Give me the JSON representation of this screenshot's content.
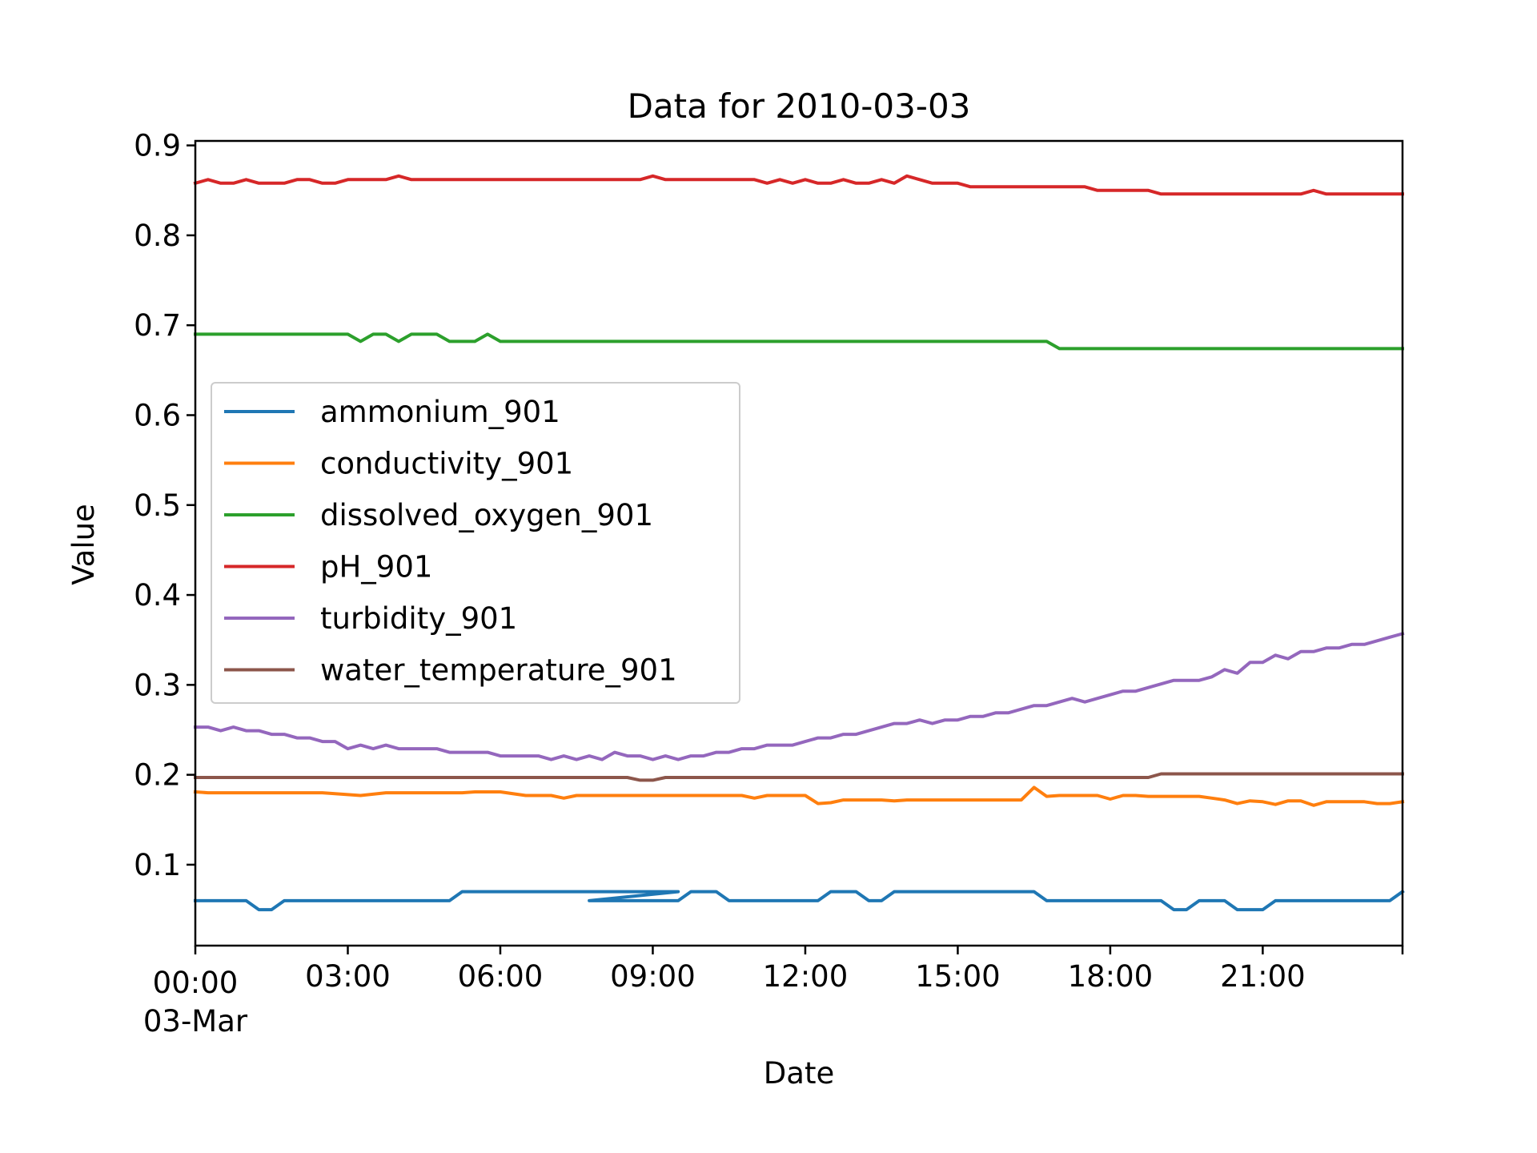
{
  "chart_data": {
    "type": "line",
    "title": "Data for 2010-03-03",
    "xlabel": "Date",
    "ylabel": "Value",
    "x_ticks": [
      "00:00",
      "03:00",
      "06:00",
      "09:00",
      "12:00",
      "15:00",
      "18:00",
      "21:00"
    ],
    "x_tick_date": "03-Mar",
    "y_ticks": [
      "0.1",
      "0.2",
      "0.3",
      "0.4",
      "0.5",
      "0.6",
      "0.7",
      "0.8",
      "0.9"
    ],
    "xlim": [
      "2010-03-03 00:00",
      "2010-03-03 23:45"
    ],
    "ylim": [
      0.01,
      0.905
    ],
    "grid": false,
    "legend_position": "center-left",
    "series": [
      {
        "name": "ammonium_901",
        "color": "#1f77b4",
        "points": [
          [
            "00:00",
            0.06
          ],
          [
            "01:00",
            0.06
          ],
          [
            "01:15",
            0.05
          ],
          [
            "01:30",
            0.05
          ],
          [
            "01:45",
            0.06
          ],
          [
            "05:00",
            0.06
          ],
          [
            "05:15",
            0.07
          ],
          [
            "09:30",
            0.07
          ],
          [
            "07:45",
            0.06
          ],
          [
            "09:30",
            0.06
          ],
          [
            "09:45",
            0.07
          ],
          [
            "10:15",
            0.07
          ],
          [
            "10:30",
            0.06
          ],
          [
            "12:15",
            0.06
          ],
          [
            "12:30",
            0.07
          ],
          [
            "13:00",
            0.07
          ],
          [
            "13:15",
            0.06
          ],
          [
            "13:30",
            0.06
          ],
          [
            "13:45",
            0.07
          ],
          [
            "16:30",
            0.07
          ],
          [
            "16:45",
            0.06
          ],
          [
            "19:00",
            0.06
          ],
          [
            "19:15",
            0.05
          ],
          [
            "19:30",
            0.05
          ],
          [
            "19:45",
            0.06
          ],
          [
            "20:15",
            0.06
          ],
          [
            "20:30",
            0.05
          ],
          [
            "21:00",
            0.05
          ],
          [
            "21:15",
            0.06
          ],
          [
            "23:30",
            0.06
          ],
          [
            "23:45",
            0.07
          ]
        ]
      },
      {
        "name": "conductivity_901",
        "color": "#ff7f0e",
        "points": [
          [
            "00:00",
            0.181
          ],
          [
            "00:15",
            0.18
          ],
          [
            "02:30",
            0.18
          ],
          [
            "03:00",
            0.178
          ],
          [
            "03:15",
            0.177
          ],
          [
            "03:45",
            0.18
          ],
          [
            "05:15",
            0.18
          ],
          [
            "05:30",
            0.181
          ],
          [
            "06:00",
            0.181
          ],
          [
            "06:30",
            0.177
          ],
          [
            "07:00",
            0.177
          ],
          [
            "07:15",
            0.174
          ],
          [
            "07:30",
            0.177
          ],
          [
            "10:45",
            0.177
          ],
          [
            "11:00",
            0.174
          ],
          [
            "11:15",
            0.177
          ],
          [
            "12:00",
            0.177
          ],
          [
            "12:15",
            0.168
          ],
          [
            "12:30",
            0.169
          ],
          [
            "12:45",
            0.172
          ],
          [
            "13:30",
            0.172
          ],
          [
            "13:45",
            0.171
          ],
          [
            "14:00",
            0.172
          ],
          [
            "16:15",
            0.172
          ],
          [
            "16:30",
            0.186
          ],
          [
            "16:45",
            0.176
          ],
          [
            "17:00",
            0.177
          ],
          [
            "17:45",
            0.177
          ],
          [
            "18:00",
            0.173
          ],
          [
            "18:15",
            0.177
          ],
          [
            "18:30",
            0.177
          ],
          [
            "18:45",
            0.176
          ],
          [
            "19:45",
            0.176
          ],
          [
            "20:00",
            0.174
          ],
          [
            "20:15",
            0.172
          ],
          [
            "20:30",
            0.168
          ],
          [
            "20:45",
            0.171
          ],
          [
            "21:00",
            0.17
          ],
          [
            "21:15",
            0.167
          ],
          [
            "21:30",
            0.171
          ],
          [
            "21:45",
            0.171
          ],
          [
            "22:00",
            0.166
          ],
          [
            "22:15",
            0.17
          ],
          [
            "23:00",
            0.17
          ],
          [
            "23:15",
            0.168
          ],
          [
            "23:30",
            0.168
          ],
          [
            "23:45",
            0.17
          ]
        ]
      },
      {
        "name": "dissolved_oxygen_901",
        "color": "#2ca02c",
        "points": [
          [
            "00:00",
            0.69
          ],
          [
            "03:00",
            0.69
          ],
          [
            "03:15",
            0.682
          ],
          [
            "03:30",
            0.69
          ],
          [
            "03:45",
            0.69
          ],
          [
            "04:00",
            0.682
          ],
          [
            "04:15",
            0.69
          ],
          [
            "04:45",
            0.69
          ],
          [
            "05:00",
            0.682
          ],
          [
            "05:30",
            0.682
          ],
          [
            "05:45",
            0.69
          ],
          [
            "06:00",
            0.682
          ],
          [
            "16:45",
            0.682
          ],
          [
            "17:00",
            0.674
          ],
          [
            "23:45",
            0.674
          ]
        ]
      },
      {
        "name": "pH_901",
        "color": "#d62728",
        "points": [
          [
            "00:00",
            0.858
          ],
          [
            "00:15",
            0.862
          ],
          [
            "00:30",
            0.858
          ],
          [
            "00:45",
            0.858
          ],
          [
            "01:00",
            0.862
          ],
          [
            "01:15",
            0.858
          ],
          [
            "01:45",
            0.858
          ],
          [
            "02:00",
            0.862
          ],
          [
            "02:15",
            0.862
          ],
          [
            "02:30",
            0.858
          ],
          [
            "02:45",
            0.858
          ],
          [
            "03:00",
            0.862
          ],
          [
            "03:45",
            0.862
          ],
          [
            "04:00",
            0.866
          ],
          [
            "04:15",
            0.862
          ],
          [
            "08:45",
            0.862
          ],
          [
            "09:00",
            0.866
          ],
          [
            "09:15",
            0.862
          ],
          [
            "11:00",
            0.862
          ],
          [
            "11:15",
            0.858
          ],
          [
            "11:30",
            0.862
          ],
          [
            "11:45",
            0.858
          ],
          [
            "12:00",
            0.862
          ],
          [
            "12:15",
            0.858
          ],
          [
            "12:30",
            0.858
          ],
          [
            "12:45",
            0.862
          ],
          [
            "13:00",
            0.858
          ],
          [
            "13:15",
            0.858
          ],
          [
            "13:30",
            0.862
          ],
          [
            "13:45",
            0.858
          ],
          [
            "14:00",
            0.866
          ],
          [
            "14:15",
            0.862
          ],
          [
            "14:30",
            0.858
          ],
          [
            "15:00",
            0.858
          ],
          [
            "15:15",
            0.854
          ],
          [
            "17:30",
            0.854
          ],
          [
            "17:45",
            0.85
          ],
          [
            "18:45",
            0.85
          ],
          [
            "19:00",
            0.846
          ],
          [
            "21:45",
            0.846
          ],
          [
            "22:00",
            0.85
          ],
          [
            "22:15",
            0.846
          ],
          [
            "23:45",
            0.846
          ]
        ]
      },
      {
        "name": "turbidity_901",
        "color": "#9467bd",
        "points": [
          [
            "00:00",
            0.253
          ],
          [
            "00:15",
            0.253
          ],
          [
            "00:30",
            0.249
          ],
          [
            "00:45",
            0.253
          ],
          [
            "01:00",
            0.249
          ],
          [
            "01:15",
            0.249
          ],
          [
            "01:30",
            0.245
          ],
          [
            "01:45",
            0.245
          ],
          [
            "02:00",
            0.241
          ],
          [
            "02:15",
            0.241
          ],
          [
            "02:30",
            0.237
          ],
          [
            "02:45",
            0.237
          ],
          [
            "03:00",
            0.229
          ],
          [
            "03:15",
            0.233
          ],
          [
            "03:30",
            0.229
          ],
          [
            "03:45",
            0.233
          ],
          [
            "04:00",
            0.229
          ],
          [
            "04:45",
            0.229
          ],
          [
            "05:00",
            0.225
          ],
          [
            "05:45",
            0.225
          ],
          [
            "06:00",
            0.221
          ],
          [
            "06:45",
            0.221
          ],
          [
            "07:00",
            0.217
          ],
          [
            "07:15",
            0.221
          ],
          [
            "07:30",
            0.217
          ],
          [
            "07:45",
            0.221
          ],
          [
            "08:00",
            0.217
          ],
          [
            "08:15",
            0.225
          ],
          [
            "08:30",
            0.221
          ],
          [
            "08:45",
            0.221
          ],
          [
            "09:00",
            0.217
          ],
          [
            "09:15",
            0.221
          ],
          [
            "09:30",
            0.217
          ],
          [
            "09:45",
            0.221
          ],
          [
            "10:00",
            0.221
          ],
          [
            "10:15",
            0.225
          ],
          [
            "10:30",
            0.225
          ],
          [
            "10:45",
            0.229
          ],
          [
            "11:00",
            0.229
          ],
          [
            "11:15",
            0.233
          ],
          [
            "11:45",
            0.233
          ],
          [
            "12:00",
            0.237
          ],
          [
            "12:15",
            0.241
          ],
          [
            "12:30",
            0.241
          ],
          [
            "12:45",
            0.245
          ],
          [
            "13:00",
            0.245
          ],
          [
            "13:15",
            0.249
          ],
          [
            "13:30",
            0.253
          ],
          [
            "13:45",
            0.257
          ],
          [
            "14:00",
            0.257
          ],
          [
            "14:15",
            0.261
          ],
          [
            "14:30",
            0.257
          ],
          [
            "14:45",
            0.261
          ],
          [
            "15:00",
            0.261
          ],
          [
            "15:15",
            0.265
          ],
          [
            "15:30",
            0.265
          ],
          [
            "15:45",
            0.269
          ],
          [
            "16:00",
            0.269
          ],
          [
            "16:15",
            0.273
          ],
          [
            "16:30",
            0.277
          ],
          [
            "16:45",
            0.277
          ],
          [
            "17:00",
            0.281
          ],
          [
            "17:15",
            0.285
          ],
          [
            "17:30",
            0.281
          ],
          [
            "17:45",
            0.285
          ],
          [
            "18:00",
            0.289
          ],
          [
            "18:15",
            0.293
          ],
          [
            "18:30",
            0.293
          ],
          [
            "18:45",
            0.297
          ],
          [
            "19:00",
            0.301
          ],
          [
            "19:15",
            0.305
          ],
          [
            "19:45",
            0.305
          ],
          [
            "20:00",
            0.309
          ],
          [
            "20:15",
            0.317
          ],
          [
            "20:30",
            0.313
          ],
          [
            "20:45",
            0.325
          ],
          [
            "21:00",
            0.325
          ],
          [
            "21:15",
            0.333
          ],
          [
            "21:30",
            0.329
          ],
          [
            "21:45",
            0.337
          ],
          [
            "22:00",
            0.337
          ],
          [
            "22:15",
            0.341
          ],
          [
            "22:30",
            0.341
          ],
          [
            "22:45",
            0.345
          ],
          [
            "23:00",
            0.345
          ],
          [
            "23:15",
            0.349
          ],
          [
            "23:30",
            0.353
          ],
          [
            "23:45",
            0.357
          ]
        ]
      },
      {
        "name": "water_temperature_901",
        "color": "#8c564b",
        "points": [
          [
            "00:00",
            0.197
          ],
          [
            "08:30",
            0.197
          ],
          [
            "08:45",
            0.194
          ],
          [
            "09:00",
            0.194
          ],
          [
            "09:15",
            0.197
          ],
          [
            "18:45",
            0.197
          ],
          [
            "19:00",
            0.201
          ],
          [
            "23:45",
            0.201
          ]
        ]
      }
    ]
  }
}
